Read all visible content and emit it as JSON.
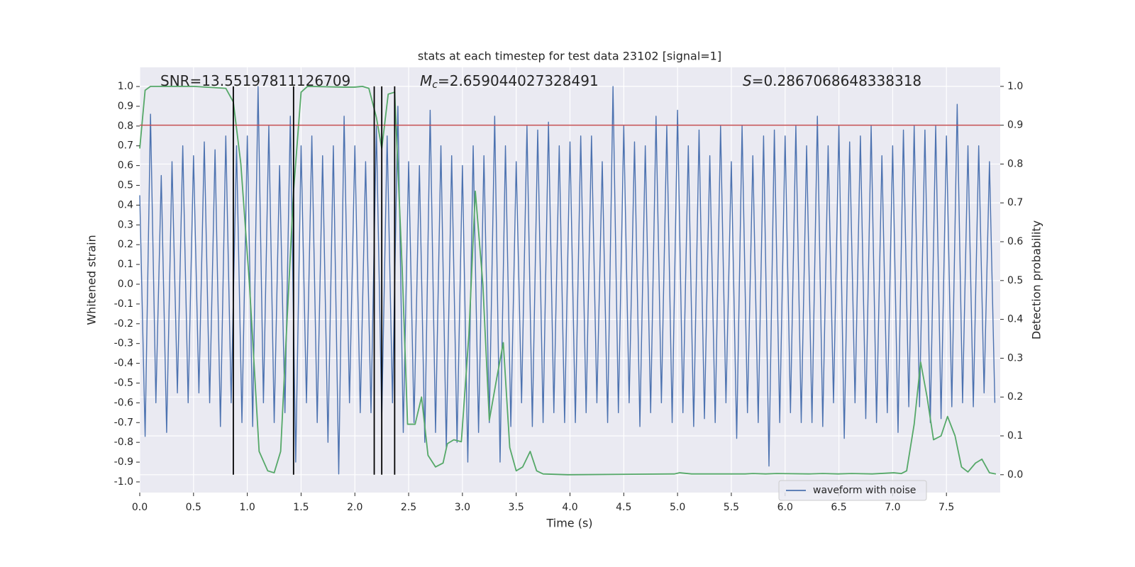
{
  "chart_data": {
    "type": "line",
    "title": "stats at each timestep for test data 23102 [signal=1]",
    "xlabel": "Time (s)",
    "ylabel": "Whitened strain",
    "y2label": "Detection probability",
    "annotations": [
      {
        "text": "SNR=13.55197811126709"
      },
      {
        "symbol": "M",
        "sub": "c",
        "text": "=2.659044027328491"
      },
      {
        "symbol": "S",
        "text": "=0.2867068648338318"
      }
    ],
    "xlim": [
      0,
      8.0
    ],
    "ylim": [
      -1.054,
      1.097
    ],
    "y2lim": [
      -0.046,
      1.049
    ],
    "xticks": [
      {
        "value": 0,
        "label": "0.0"
      },
      0.5,
      {
        "value": 1,
        "label": "1.0"
      },
      1.5,
      {
        "value": 2,
        "label": "2.0"
      },
      2.5,
      {
        "value": 3,
        "label": "3.0"
      },
      3.5,
      {
        "value": 4,
        "label": "4.0"
      },
      4.5,
      {
        "value": 5,
        "label": "5.0"
      },
      5.5,
      {
        "value": 6,
        "label": "6.0"
      },
      6.5,
      {
        "value": 7,
        "label": "7.0"
      },
      7.5
    ],
    "yticks": [
      {
        "value": -1,
        "label": "-1.0"
      },
      -0.9,
      -0.8,
      -0.7,
      -0.6,
      -0.5,
      -0.4,
      -0.3,
      -0.2,
      -0.1,
      {
        "value": 0,
        "label": "0.0"
      },
      0.1,
      0.2,
      0.3,
      0.4,
      0.5,
      0.6,
      0.7,
      0.8,
      0.9,
      {
        "value": 1,
        "label": "1.0"
      }
    ],
    "y2ticks": [
      {
        "value": 0,
        "label": "0.0"
      },
      0.1,
      0.2,
      0.3,
      0.4,
      0.5,
      0.6,
      0.7,
      0.8,
      0.9,
      {
        "value": 1,
        "label": "1.0"
      }
    ],
    "grid": true,
    "legend": "lower right",
    "series": [
      {
        "name": "waveform with noise",
        "color": "#4c72b0",
        "x": [
          0,
          0.05,
          0.1,
          0.15,
          0.2,
          0.25,
          0.3,
          0.35,
          0.4,
          0.45,
          0.5,
          0.55,
          0.6,
          0.65,
          0.7,
          0.75,
          0.8,
          0.85,
          0.9,
          0.95,
          1,
          1.05,
          1.1,
          1.15,
          1.2,
          1.25,
          1.3,
          1.35,
          1.4,
          1.45,
          1.5,
          1.55,
          1.6,
          1.65,
          1.7,
          1.75,
          1.8,
          1.85,
          1.9,
          1.95,
          2,
          2.05,
          2.1,
          2.15,
          2.2,
          2.25,
          2.3,
          2.35,
          2.4,
          2.45,
          2.5,
          2.55,
          2.6,
          2.65,
          2.7,
          2.75,
          2.8,
          2.85,
          2.9,
          2.95,
          3,
          3.05,
          3.1,
          3.15,
          3.2,
          3.25,
          3.3,
          3.35,
          3.4,
          3.45,
          3.5,
          3.55,
          3.6,
          3.65,
          3.7,
          3.75,
          3.8,
          3.85,
          3.9,
          3.95,
          4,
          4.05,
          4.1,
          4.15,
          4.2,
          4.25,
          4.3,
          4.35,
          4.4,
          4.45,
          4.5,
          4.55,
          4.6,
          4.65,
          4.7,
          4.75,
          4.8,
          4.85,
          4.9,
          4.95,
          5,
          5.05,
          5.1,
          5.15,
          5.2,
          5.25,
          5.3,
          5.35,
          5.4,
          5.45,
          5.5,
          5.55,
          5.6,
          5.65,
          5.7,
          5.75,
          5.8,
          5.85,
          5.9,
          5.95,
          6,
          6.05,
          6.1,
          6.15,
          6.2,
          6.25,
          6.3,
          6.35,
          6.4,
          6.45,
          6.5,
          6.55,
          6.6,
          6.65,
          6.7,
          6.75,
          6.8,
          6.85,
          6.9,
          6.95,
          7,
          7.05,
          7.1,
          7.15,
          7.2,
          7.25,
          7.3,
          7.35,
          7.4,
          7.45,
          7.5,
          7.55,
          7.6,
          7.65,
          7.7,
          7.75,
          7.8,
          7.85,
          7.9,
          7.95
        ],
        "values": [
          0.45,
          -0.77,
          0.86,
          -0.6,
          0.55,
          -0.75,
          0.62,
          -0.55,
          0.7,
          -0.6,
          0.65,
          -0.55,
          0.72,
          -0.6,
          0.68,
          -0.72,
          0.75,
          -0.6,
          0.7,
          -0.7,
          0.75,
          -0.72,
          1.0,
          -0.6,
          0.8,
          -0.7,
          0.6,
          -0.65,
          0.85,
          -0.9,
          0.7,
          -0.6,
          0.75,
          -0.7,
          0.65,
          -0.8,
          0.7,
          -0.96,
          0.85,
          -0.6,
          0.7,
          -0.65,
          0.62,
          -0.65,
          0.8,
          -0.68,
          0.75,
          -0.6,
          0.9,
          -0.75,
          0.62,
          -0.7,
          0.6,
          -0.8,
          0.88,
          -0.75,
          0.7,
          -0.83,
          0.65,
          -0.8,
          0.6,
          -0.9,
          0.7,
          -0.75,
          0.65,
          -0.7,
          0.85,
          -0.9,
          0.7,
          -0.72,
          0.62,
          -0.6,
          0.8,
          -0.72,
          0.78,
          -0.7,
          0.82,
          -0.65,
          0.7,
          -0.7,
          0.72,
          -0.7,
          0.75,
          -0.65,
          0.75,
          -0.6,
          0.62,
          -0.7,
          1.0,
          -0.65,
          0.8,
          -0.6,
          0.72,
          -0.72,
          0.7,
          -0.65,
          0.85,
          -0.6,
          0.8,
          -0.7,
          0.88,
          -0.65,
          0.7,
          -0.72,
          0.78,
          -0.68,
          0.65,
          -0.7,
          0.8,
          -0.6,
          0.62,
          -0.78,
          0.8,
          -0.65,
          0.65,
          -0.7,
          0.75,
          -0.92,
          0.78,
          -0.7,
          0.75,
          -0.65,
          0.8,
          -0.7,
          0.7,
          -0.7,
          0.85,
          -0.72,
          0.7,
          -0.6,
          0.8,
          -0.78,
          0.72,
          -0.6,
          0.75,
          -0.68,
          0.8,
          -0.7,
          0.65,
          -0.65,
          0.7,
          -0.75,
          0.78,
          -0.62,
          0.8,
          -0.62,
          0.78,
          -0.7,
          0.8,
          -0.68,
          0.75,
          -0.62,
          0.91,
          -0.6,
          0.7,
          -0.62,
          0.7,
          -0.55,
          0.62,
          -0.6
        ]
      },
      {
        "color": "#55a868",
        "axis": "y2",
        "x": [
          0,
          0.05,
          0.1,
          0.3,
          0.5,
          0.8,
          0.87,
          0.94,
          1.02,
          1.11,
          1.19,
          1.25,
          1.31,
          1.37,
          1.43,
          1.5,
          1.56,
          1.89,
          2.0,
          2.07,
          2.13,
          2.2,
          2.25,
          2.31,
          2.37,
          2.44,
          2.49,
          2.56,
          2.62,
          2.68,
          2.75,
          2.82,
          2.86,
          2.92,
          2.99,
          3.06,
          3.12,
          3.19,
          3.25,
          3.32,
          3.38,
          3.44,
          3.5,
          3.56,
          3.63,
          3.69,
          3.75,
          3.98,
          4.97,
          5.02,
          5.13,
          5.63,
          5.7,
          5.82,
          5.92,
          6.22,
          6.35,
          6.49,
          6.62,
          6.81,
          7.01,
          7.08,
          7.13,
          7.2,
          7.26,
          7.32,
          7.38,
          7.45,
          7.51,
          7.58,
          7.64,
          7.7,
          7.77,
          7.83,
          7.9,
          7.96
        ],
        "values": [
          0.84,
          0.99,
          1.0,
          1.0,
          1.0,
          0.995,
          0.96,
          0.8,
          0.49,
          0.06,
          0.01,
          0.005,
          0.06,
          0.4,
          0.73,
          0.985,
          1.0,
          0.998,
          0.998,
          1.0,
          0.995,
          0.92,
          0.84,
          0.98,
          0.985,
          0.53,
          0.13,
          0.13,
          0.2,
          0.05,
          0.02,
          0.03,
          0.08,
          0.09,
          0.085,
          0.36,
          0.73,
          0.49,
          0.14,
          0.25,
          0.34,
          0.07,
          0.01,
          0.02,
          0.06,
          0.01,
          0.002,
          0,
          0.002,
          0.005,
          0.002,
          0.002,
          0.003,
          0.002,
          0.003,
          0.002,
          0.003,
          0.002,
          0.003,
          0.002,
          0.005,
          0.003,
          0.01,
          0.13,
          0.29,
          0.2,
          0.09,
          0.1,
          0.15,
          0.1,
          0.02,
          0.007,
          0.03,
          0.04,
          0.005,
          0.002
        ]
      }
    ],
    "hlines": [
      {
        "value": 0.9,
        "axis": "y2",
        "color": "#c44e52"
      }
    ],
    "vlines": {
      "x": [
        0.87,
        1.43,
        2.18,
        2.25,
        2.37
      ],
      "span": [
        0,
        1
      ],
      "axis": "y2",
      "color": "#000000"
    }
  }
}
